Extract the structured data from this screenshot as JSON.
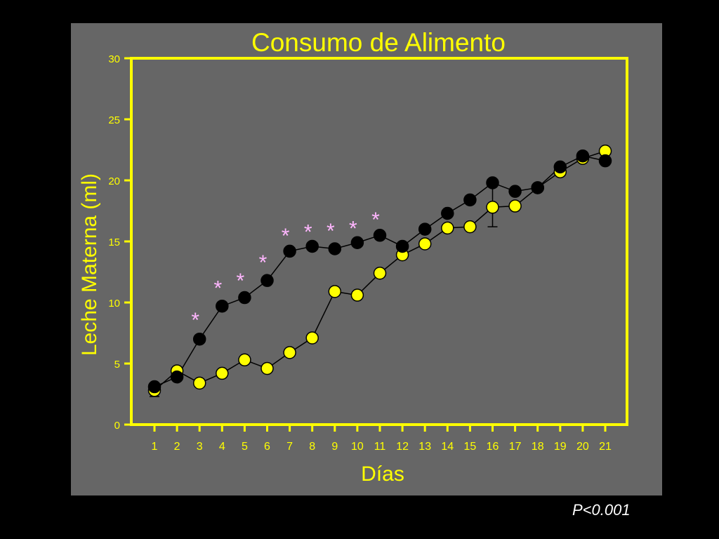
{
  "chart_data": {
    "type": "line",
    "title": "Consumo de Alimento",
    "xlabel": "Días",
    "ylabel": "Leche Materna (ml)",
    "x": [
      1,
      2,
      3,
      4,
      5,
      6,
      7,
      8,
      9,
      10,
      11,
      12,
      13,
      14,
      15,
      16,
      17,
      18,
      19,
      20,
      21
    ],
    "ylim": [
      0,
      30
    ],
    "yticks": [
      0,
      5,
      10,
      15,
      20,
      25,
      30
    ],
    "grid": false,
    "legend": "none",
    "series": [
      {
        "color": "#ffff00",
        "values": [
          2.8,
          4.4,
          3.4,
          4.2,
          5.3,
          4.6,
          5.9,
          7.1,
          10.9,
          10.6,
          12.4,
          13.9,
          14.8,
          16.1,
          16.2,
          17.8,
          17.9,
          19.4,
          20.7,
          21.8,
          22.4
        ]
      },
      {
        "color": "#000000",
        "values": [
          3.1,
          3.9,
          7.0,
          9.7,
          10.4,
          11.8,
          14.2,
          14.6,
          14.4,
          14.9,
          15.5,
          14.6,
          16.0,
          17.3,
          18.4,
          19.8,
          19.1,
          19.4,
          21.1,
          22.0,
          21.6
        ]
      }
    ],
    "error_bars": [
      {
        "x": 1,
        "low": 2.3,
        "high": 3.1
      },
      {
        "x": 16,
        "low": 16.2,
        "high": 19.8
      }
    ],
    "annotations": [
      {
        "x": 3,
        "y": 8.8,
        "text": "*"
      },
      {
        "x": 4,
        "y": 11.4,
        "text": "*"
      },
      {
        "x": 5,
        "y": 12.0,
        "text": "*"
      },
      {
        "x": 6,
        "y": 13.5,
        "text": "*"
      },
      {
        "x": 7,
        "y": 15.7,
        "text": "*"
      },
      {
        "x": 8,
        "y": 16.0,
        "text": "*"
      },
      {
        "x": 9,
        "y": 16.1,
        "text": "*"
      },
      {
        "x": 10,
        "y": 16.3,
        "text": "*"
      },
      {
        "x": 11,
        "y": 17.0,
        "text": "*"
      }
    ],
    "annotation_color": "#ffb6ff",
    "axis_color": "#ffff00",
    "text_color": "#ffff00"
  },
  "footnote": "P<0.001"
}
